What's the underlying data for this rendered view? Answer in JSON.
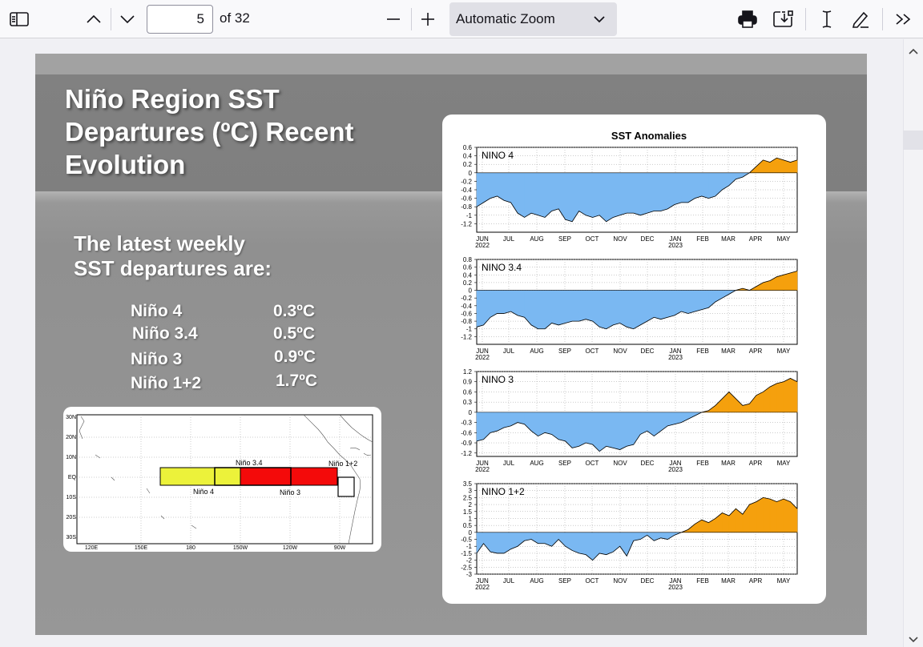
{
  "toolbar": {
    "page_current": "5",
    "page_total_label": "of 32",
    "zoom_label": "Automatic Zoom"
  },
  "slide": {
    "title_lines": [
      "Niño Region SST",
      "Departures (ºC) Recent",
      "Evolution"
    ],
    "subtitle_lines": [
      "The latest weekly",
      "SST departures are:"
    ],
    "regions": [
      {
        "name": "Niño 4",
        "value": "0.3ºC"
      },
      {
        "name": "Niño 3.4",
        "value": "0.5ºC"
      },
      {
        "name": "Niño 3",
        "value": "0.9ºC"
      },
      {
        "name": "Niño 1+2",
        "value": "1.7ºC"
      }
    ]
  },
  "map": {
    "lat_labels": [
      "30N",
      "20N",
      "10N",
      "EQ",
      "10S",
      "20S",
      "30S"
    ],
    "lon_labels": [
      "120E",
      "150E",
      "180",
      "150W",
      "120W",
      "90W"
    ],
    "box_labels": [
      "Niño 3.4",
      "Niño 1+2",
      "Niño 4",
      "Niño 3"
    ],
    "colors": {
      "nino4": "#ecf23a",
      "nino3": "#f40a0a",
      "outline": "#000000"
    }
  },
  "chart_data": {
    "type": "area",
    "title": "SST Anomalies",
    "month_labels": [
      "JUN",
      "JUL",
      "AUG",
      "SEP",
      "OCT",
      "NOV",
      "DEC",
      "JAN",
      "FEB",
      "MAR",
      "APR",
      "MAY"
    ],
    "year_labels": [
      "2022",
      "2023"
    ],
    "colors": {
      "negative": "#7ab8f2",
      "positive": "#f5a00d"
    },
    "panels": [
      {
        "name": "NINO 4",
        "ylim": [
          -1.4,
          0.6
        ],
        "ticks": [
          "0.6",
          "0.4",
          "0.2",
          "0",
          "-0.2",
          "-0.4",
          "-0.6",
          "-0.8",
          "-1",
          "-1.2"
        ],
        "tick_values": [
          0.6,
          0.4,
          0.2,
          0,
          -0.2,
          -0.4,
          -0.6,
          -0.8,
          -1,
          -1.2
        ],
        "values": [
          -0.8,
          -0.7,
          -0.6,
          -0.55,
          -0.65,
          -0.7,
          -0.95,
          -1.05,
          -0.95,
          -1.0,
          -1.05,
          -0.9,
          -0.85,
          -1.1,
          -1.15,
          -0.9,
          -1.0,
          -1.05,
          -1.0,
          -1.15,
          -1.05,
          -1.0,
          -0.95,
          -0.95,
          -1.0,
          -0.95,
          -0.9,
          -0.9,
          -0.85,
          -0.75,
          -0.7,
          -0.7,
          -0.6,
          -0.55,
          -0.6,
          -0.55,
          -0.4,
          -0.3,
          -0.15,
          -0.1,
          0.0,
          0.15,
          0.3,
          0.25,
          0.35,
          0.3,
          0.25,
          0.3
        ]
      },
      {
        "name": "NINO 3.4",
        "ylim": [
          -1.4,
          0.8
        ],
        "ticks": [
          "0.8",
          "0.6",
          "0.4",
          "0.2",
          "0",
          "-0.2",
          "-0.4",
          "-0.6",
          "-0.8",
          "-1",
          "-1.2"
        ],
        "tick_values": [
          0.8,
          0.6,
          0.4,
          0.2,
          0,
          -0.2,
          -0.4,
          -0.6,
          -0.8,
          -1,
          -1.2
        ],
        "values": [
          -0.95,
          -0.9,
          -0.7,
          -0.6,
          -0.6,
          -0.55,
          -0.65,
          -0.7,
          -0.9,
          -1.0,
          -1.0,
          -0.85,
          -0.9,
          -0.85,
          -0.8,
          -0.8,
          -0.75,
          -0.8,
          -0.95,
          -1.0,
          -0.9,
          -0.85,
          -0.95,
          -1.0,
          -0.9,
          -0.8,
          -0.7,
          -0.75,
          -0.7,
          -0.65,
          -0.55,
          -0.6,
          -0.55,
          -0.5,
          -0.45,
          -0.3,
          -0.2,
          -0.1,
          0.0,
          0.05,
          0.0,
          0.1,
          0.2,
          0.25,
          0.35,
          0.4,
          0.45,
          0.5
        ]
      },
      {
        "name": "NINO 3",
        "ylim": [
          -1.3,
          1.2
        ],
        "ticks": [
          "1.2",
          "0.9",
          "0.6",
          "0.3",
          "0",
          "-0.3",
          "-0.6",
          "-0.9",
          "-1.2"
        ],
        "tick_values": [
          1.2,
          0.9,
          0.6,
          0.3,
          0,
          -0.3,
          -0.6,
          -0.9,
          -1.2
        ],
        "values": [
          -0.85,
          -0.8,
          -0.6,
          -0.55,
          -0.45,
          -0.4,
          -0.3,
          -0.35,
          -0.55,
          -0.7,
          -0.6,
          -0.65,
          -0.8,
          -0.85,
          -1.05,
          -1.0,
          -0.9,
          -0.95,
          -1.15,
          -1.0,
          -1.05,
          -1.1,
          -1.0,
          -0.95,
          -0.65,
          -0.55,
          -0.7,
          -0.55,
          -0.4,
          -0.35,
          -0.3,
          -0.2,
          -0.1,
          0.0,
          0.05,
          0.2,
          0.4,
          0.6,
          0.4,
          0.2,
          0.25,
          0.5,
          0.6,
          0.75,
          0.85,
          0.9,
          1.0,
          0.9
        ]
      },
      {
        "name": "NINO 1+2",
        "ylim": [
          -3.0,
          3.5
        ],
        "ticks": [
          "3.5",
          "3",
          "2.5",
          "2",
          "1.5",
          "1",
          "0.5",
          "0",
          "-0.5",
          "-1",
          "-1.5",
          "-2",
          "-2.5",
          "-3"
        ],
        "tick_values": [
          3.5,
          3,
          2.5,
          2,
          1.5,
          1,
          0.5,
          0,
          -0.5,
          -1,
          -1.5,
          -2,
          -2.5,
          -3
        ],
        "values": [
          -1.5,
          -0.8,
          -1.4,
          -1.5,
          -1.5,
          -1.2,
          -1.0,
          -0.6,
          -0.5,
          -0.8,
          -0.8,
          -1.0,
          -0.5,
          -1.0,
          -1.3,
          -1.5,
          -1.6,
          -2.0,
          -1.5,
          -1.6,
          -1.4,
          -1.0,
          -1.7,
          -0.6,
          -0.5,
          -0.2,
          -0.6,
          -0.4,
          -0.5,
          -0.2,
          0.0,
          0.2,
          0.6,
          0.9,
          0.7,
          1.0,
          1.4,
          1.2,
          1.7,
          1.3,
          2.0,
          2.2,
          2.5,
          2.4,
          2.2,
          2.4,
          2.2,
          1.7
        ]
      }
    ]
  }
}
